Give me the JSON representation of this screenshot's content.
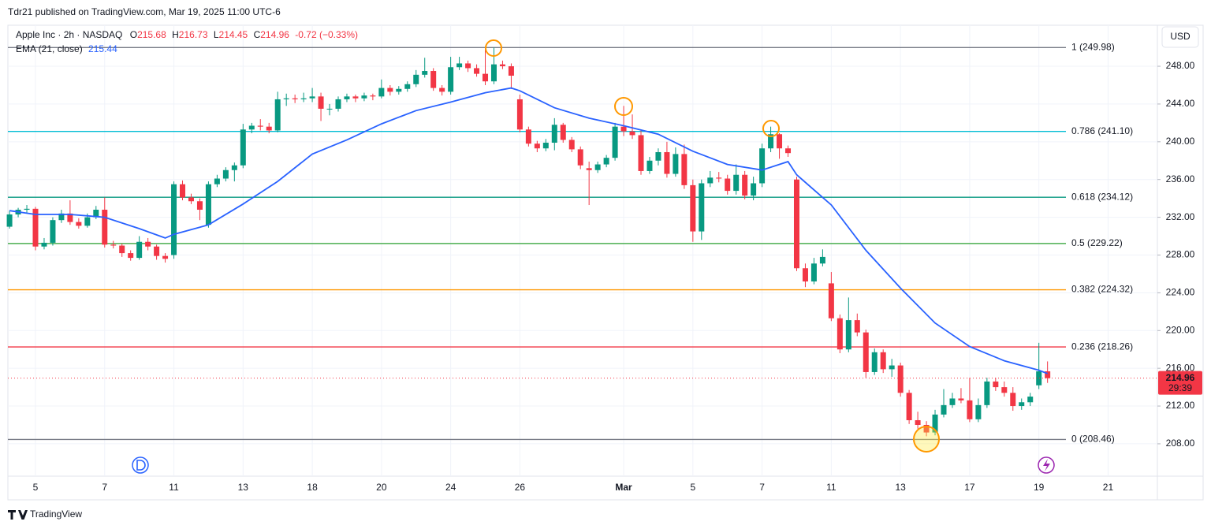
{
  "chart_data": {
    "type": "candlestick",
    "publisher": "Tdr21 published on TradingView.com, Mar 19, 2025 11:00 UTC-6",
    "symbol": "Apple Inc · 2h · NASDAQ",
    "legend": [
      {
        "label": "O",
        "value": 215.68
      },
      {
        "label": "H",
        "value": 216.73
      },
      {
        "label": "L",
        "value": 214.45
      },
      {
        "label": "C",
        "value": 214.96
      }
    ],
    "change": "-0.72 (−0.33%)",
    "ema": {
      "name": "EMA (21, close)",
      "value": 215.44,
      "color": "#2962ff",
      "x": [
        0,
        3,
        7,
        11,
        15,
        18,
        19,
        23,
        27,
        31,
        35,
        39,
        43,
        47,
        51,
        55,
        58,
        59,
        63,
        67,
        71,
        75,
        79,
        83,
        87,
        90,
        91,
        95,
        99,
        103,
        107,
        111,
        115,
        119,
        120
      ],
      "values": [
        232.7,
        232.3,
        232.3,
        232.0,
        230.8,
        229.8,
        230.2,
        231.2,
        233.4,
        235.8,
        238.7,
        240.2,
        241.9,
        243.3,
        244.2,
        245.2,
        245.7,
        245.4,
        243.6,
        242.5,
        241.7,
        240.8,
        239.0,
        237.6,
        237.0,
        237.9,
        236.5,
        233.3,
        228.5,
        224.5,
        220.8,
        218.3,
        216.8,
        215.8,
        215.44
      ]
    },
    "currency": "USD",
    "last": {
      "value": 214.96,
      "countdown": "29:39",
      "color": "#f23645"
    },
    "up_color": "#089981",
    "down_color": "#f23645",
    "ylim": [
      204.57,
      252.18
    ],
    "yticks": [
      {
        "value": 208,
        "label": "208.00"
      },
      {
        "value": 212,
        "label": "212.00"
      },
      {
        "value": 216,
        "label": "216.00"
      },
      {
        "value": 220,
        "label": "220.00"
      },
      {
        "value": 224,
        "label": "224.00"
      },
      {
        "value": 228,
        "label": "228.00"
      },
      {
        "value": 232,
        "label": "232.00"
      },
      {
        "value": 236,
        "label": "236.00"
      },
      {
        "value": 240,
        "label": "240.00"
      },
      {
        "value": 244,
        "label": "244.00"
      },
      {
        "value": 248,
        "label": "248.00"
      }
    ],
    "xlim": [
      -0.19,
      132.7
    ],
    "xticks": [
      {
        "value": 3,
        "label": "5"
      },
      {
        "value": 11,
        "label": "7"
      },
      {
        "value": 19,
        "label": "11"
      },
      {
        "value": 27,
        "label": "13"
      },
      {
        "value": 35,
        "label": "18"
      },
      {
        "value": 43,
        "label": "20"
      },
      {
        "value": 51,
        "label": "24"
      },
      {
        "value": 59,
        "label": "26"
      },
      {
        "value": 71,
        "label": "Mar"
      },
      {
        "value": 79,
        "label": "5"
      },
      {
        "value": 87,
        "label": "7"
      },
      {
        "value": 95,
        "label": "11"
      },
      {
        "value": 103,
        "label": "13"
      },
      {
        "value": 111,
        "label": "17"
      },
      {
        "value": 119,
        "label": "19"
      },
      {
        "value": 127,
        "label": "21"
      }
    ],
    "grid": true,
    "fib": [
      {
        "value": 249.98,
        "label": "1 (249.98)",
        "color": "#787b86"
      },
      {
        "value": 241.1,
        "label": "0.786 (241.10)",
        "color": "#00bcd4"
      },
      {
        "value": 234.12,
        "label": "0.618 (234.12)",
        "color": "#089981"
      },
      {
        "value": 229.22,
        "label": "0.5 (229.22)",
        "color": "#4caf50"
      },
      {
        "value": 224.32,
        "label": "0.382 (224.32)",
        "color": "#ff9800"
      },
      {
        "value": 218.26,
        "label": "0.236 (218.26)",
        "color": "#f23645"
      },
      {
        "value": 208.46,
        "label": "0 (208.46)",
        "color": "#787b86"
      }
    ],
    "ohlc": [
      [
        231.0,
        232.7,
        230.8,
        232.3
      ],
      [
        232.3,
        233.0,
        232.0,
        232.8
      ],
      [
        232.8,
        233.3,
        232.5,
        232.9
      ],
      [
        232.9,
        233.1,
        228.5,
        228.9
      ],
      [
        228.9,
        229.8,
        228.6,
        229.3
      ],
      [
        229.3,
        232.0,
        229.0,
        231.7
      ],
      [
        231.7,
        232.8,
        231.4,
        232.4
      ],
      [
        232.4,
        233.8,
        231.2,
        231.5
      ],
      [
        231.5,
        231.9,
        230.8,
        231.1
      ],
      [
        231.1,
        232.4,
        230.9,
        232.0
      ],
      [
        232.0,
        233.2,
        231.8,
        232.8
      ],
      [
        232.8,
        234.1,
        228.8,
        229.1
      ],
      [
        229.1,
        229.5,
        228.7,
        229.0
      ],
      [
        229.0,
        229.2,
        227.8,
        228.2
      ],
      [
        228.2,
        228.5,
        227.4,
        227.7
      ],
      [
        227.7,
        230.0,
        227.5,
        229.4
      ],
      [
        229.4,
        229.8,
        228.5,
        228.9
      ],
      [
        228.9,
        229.1,
        227.5,
        227.9
      ],
      [
        227.9,
        228.2,
        227.2,
        227.6
      ],
      [
        228.0,
        235.8,
        227.6,
        235.5
      ],
      [
        235.5,
        235.9,
        233.8,
        234.1
      ],
      [
        234.1,
        234.5,
        233.4,
        233.7
      ],
      [
        233.7,
        234.0,
        231.7,
        232.8
      ],
      [
        231.2,
        235.8,
        230.9,
        235.5
      ],
      [
        235.5,
        236.5,
        235.2,
        236.1
      ],
      [
        236.1,
        237.3,
        235.8,
        237.0
      ],
      [
        237.0,
        237.8,
        235.8,
        237.5
      ],
      [
        237.5,
        241.9,
        237.2,
        241.3
      ],
      [
        241.3,
        242.0,
        240.9,
        241.7
      ],
      [
        241.7,
        242.4,
        241.2,
        241.6
      ],
      [
        241.6,
        242.0,
        240.9,
        241.2
      ],
      [
        241.2,
        245.3,
        241.0,
        244.5
      ],
      [
        244.5,
        245.1,
        243.8,
        244.6
      ],
      [
        244.6,
        245.0,
        244.1,
        244.5
      ],
      [
        244.5,
        245.2,
        244.2,
        244.6
      ],
      [
        244.6,
        245.7,
        244.2,
        244.8
      ],
      [
        244.8,
        245.2,
        242.2,
        243.5
      ],
      [
        243.5,
        244.0,
        242.8,
        243.5
      ],
      [
        243.5,
        244.8,
        243.2,
        244.5
      ],
      [
        244.5,
        245.1,
        244.2,
        244.8
      ],
      [
        244.8,
        245.0,
        244.2,
        244.6
      ],
      [
        244.6,
        245.2,
        244.3,
        244.9
      ],
      [
        244.9,
        245.1,
        244.4,
        244.8
      ],
      [
        244.8,
        246.6,
        244.6,
        245.7
      ],
      [
        245.7,
        246.0,
        244.9,
        245.3
      ],
      [
        245.3,
        245.9,
        245.0,
        245.6
      ],
      [
        245.6,
        246.4,
        245.3,
        246.1
      ],
      [
        246.1,
        247.6,
        245.8,
        247.1
      ],
      [
        247.1,
        248.9,
        246.8,
        247.5
      ],
      [
        247.5,
        247.8,
        245.4,
        245.7
      ],
      [
        245.7,
        246.0,
        244.9,
        245.3
      ],
      [
        245.3,
        249.0,
        245.0,
        247.9
      ],
      [
        247.9,
        249.0,
        247.6,
        248.3
      ],
      [
        248.3,
        248.6,
        247.4,
        247.8
      ],
      [
        247.8,
        248.2,
        246.9,
        247.2
      ],
      [
        247.2,
        249.8,
        246.0,
        246.4
      ],
      [
        246.4,
        249.98,
        246.1,
        248.2
      ],
      [
        248.2,
        248.6,
        247.7,
        248.0
      ],
      [
        248.0,
        248.3,
        245.6,
        247.0
      ],
      [
        244.5,
        245.0,
        241.0,
        241.3
      ],
      [
        241.3,
        241.6,
        239.5,
        239.8
      ],
      [
        239.8,
        240.1,
        238.9,
        239.3
      ],
      [
        239.3,
        240.3,
        239.0,
        239.9
      ],
      [
        239.9,
        242.5,
        239.1,
        241.8
      ],
      [
        241.8,
        242.0,
        239.9,
        240.2
      ],
      [
        240.2,
        240.5,
        238.9,
        239.2
      ],
      [
        239.2,
        239.5,
        237.1,
        237.5
      ],
      [
        237.2,
        237.9,
        233.3,
        237.0
      ],
      [
        237.0,
        237.9,
        236.7,
        237.6
      ],
      [
        237.6,
        238.6,
        237.3,
        238.3
      ],
      [
        238.3,
        242.0,
        238.0,
        241.6
      ],
      [
        241.6,
        243.8,
        240.6,
        241.1
      ],
      [
        241.1,
        242.9,
        240.3,
        240.7
      ],
      [
        240.7,
        241.2,
        236.5,
        236.9
      ],
      [
        236.9,
        238.4,
        236.6,
        238.0
      ],
      [
        238.0,
        239.3,
        237.5,
        238.9
      ],
      [
        238.9,
        240.0,
        236.2,
        236.6
      ],
      [
        236.6,
        239.4,
        236.3,
        238.7
      ],
      [
        238.7,
        239.7,
        235.0,
        235.4
      ],
      [
        235.4,
        236.0,
        229.4,
        230.5
      ],
      [
        230.5,
        236.0,
        229.6,
        235.6
      ],
      [
        235.6,
        236.9,
        235.2,
        236.2
      ],
      [
        236.2,
        236.8,
        235.7,
        236.1
      ],
      [
        236.1,
        236.5,
        234.4,
        234.8
      ],
      [
        234.8,
        237.6,
        234.4,
        236.5
      ],
      [
        236.5,
        236.9,
        233.9,
        234.3
      ],
      [
        234.3,
        236.3,
        233.8,
        235.6
      ],
      [
        235.6,
        239.8,
        235.2,
        239.3
      ],
      [
        239.3,
        241.6,
        238.9,
        240.8
      ],
      [
        240.8,
        240.9,
        238.2,
        239.3
      ],
      [
        239.3,
        239.6,
        238.4,
        238.8
      ],
      [
        236.0,
        236.3,
        226.3,
        226.6
      ],
      [
        226.6,
        227.1,
        224.6,
        225.2
      ],
      [
        225.2,
        227.7,
        224.9,
        227.1
      ],
      [
        227.1,
        228.6,
        226.8,
        227.8
      ],
      [
        225.0,
        226.2,
        221.0,
        221.3
      ],
      [
        221.3,
        221.7,
        217.6,
        218.0
      ],
      [
        218.0,
        223.5,
        217.7,
        221.1
      ],
      [
        221.1,
        221.8,
        219.4,
        219.8
      ],
      [
        219.8,
        220.1,
        215.0,
        215.6
      ],
      [
        215.6,
        218.1,
        215.3,
        217.7
      ],
      [
        217.7,
        218.0,
        215.5,
        215.9
      ],
      [
        215.9,
        217.0,
        215.1,
        216.3
      ],
      [
        216.3,
        216.6,
        213.0,
        213.4
      ],
      [
        213.4,
        213.7,
        210.1,
        210.5
      ],
      [
        210.5,
        211.4,
        209.6,
        210.0
      ],
      [
        210.0,
        210.4,
        208.8,
        209.2
      ],
      [
        209.2,
        211.6,
        208.9,
        211.1
      ],
      [
        211.1,
        213.8,
        210.8,
        212.1
      ],
      [
        212.1,
        213.4,
        211.8,
        212.8
      ],
      [
        212.8,
        213.9,
        212.3,
        212.6
      ],
      [
        212.6,
        215.0,
        210.3,
        210.6
      ],
      [
        210.6,
        212.8,
        210.3,
        212.1
      ],
      [
        212.1,
        215.0,
        211.8,
        214.6
      ],
      [
        214.6,
        215.0,
        213.6,
        214.0
      ],
      [
        214.0,
        214.6,
        213.0,
        213.4
      ],
      [
        213.4,
        214.0,
        211.5,
        212.0
      ],
      [
        212.0,
        212.8,
        211.6,
        212.4
      ],
      [
        212.4,
        213.4,
        212.0,
        213.0
      ],
      [
        214.2,
        218.7,
        213.8,
        215.68
      ],
      [
        215.68,
        216.73,
        214.45,
        214.96
      ]
    ],
    "footer": "TradingView"
  }
}
